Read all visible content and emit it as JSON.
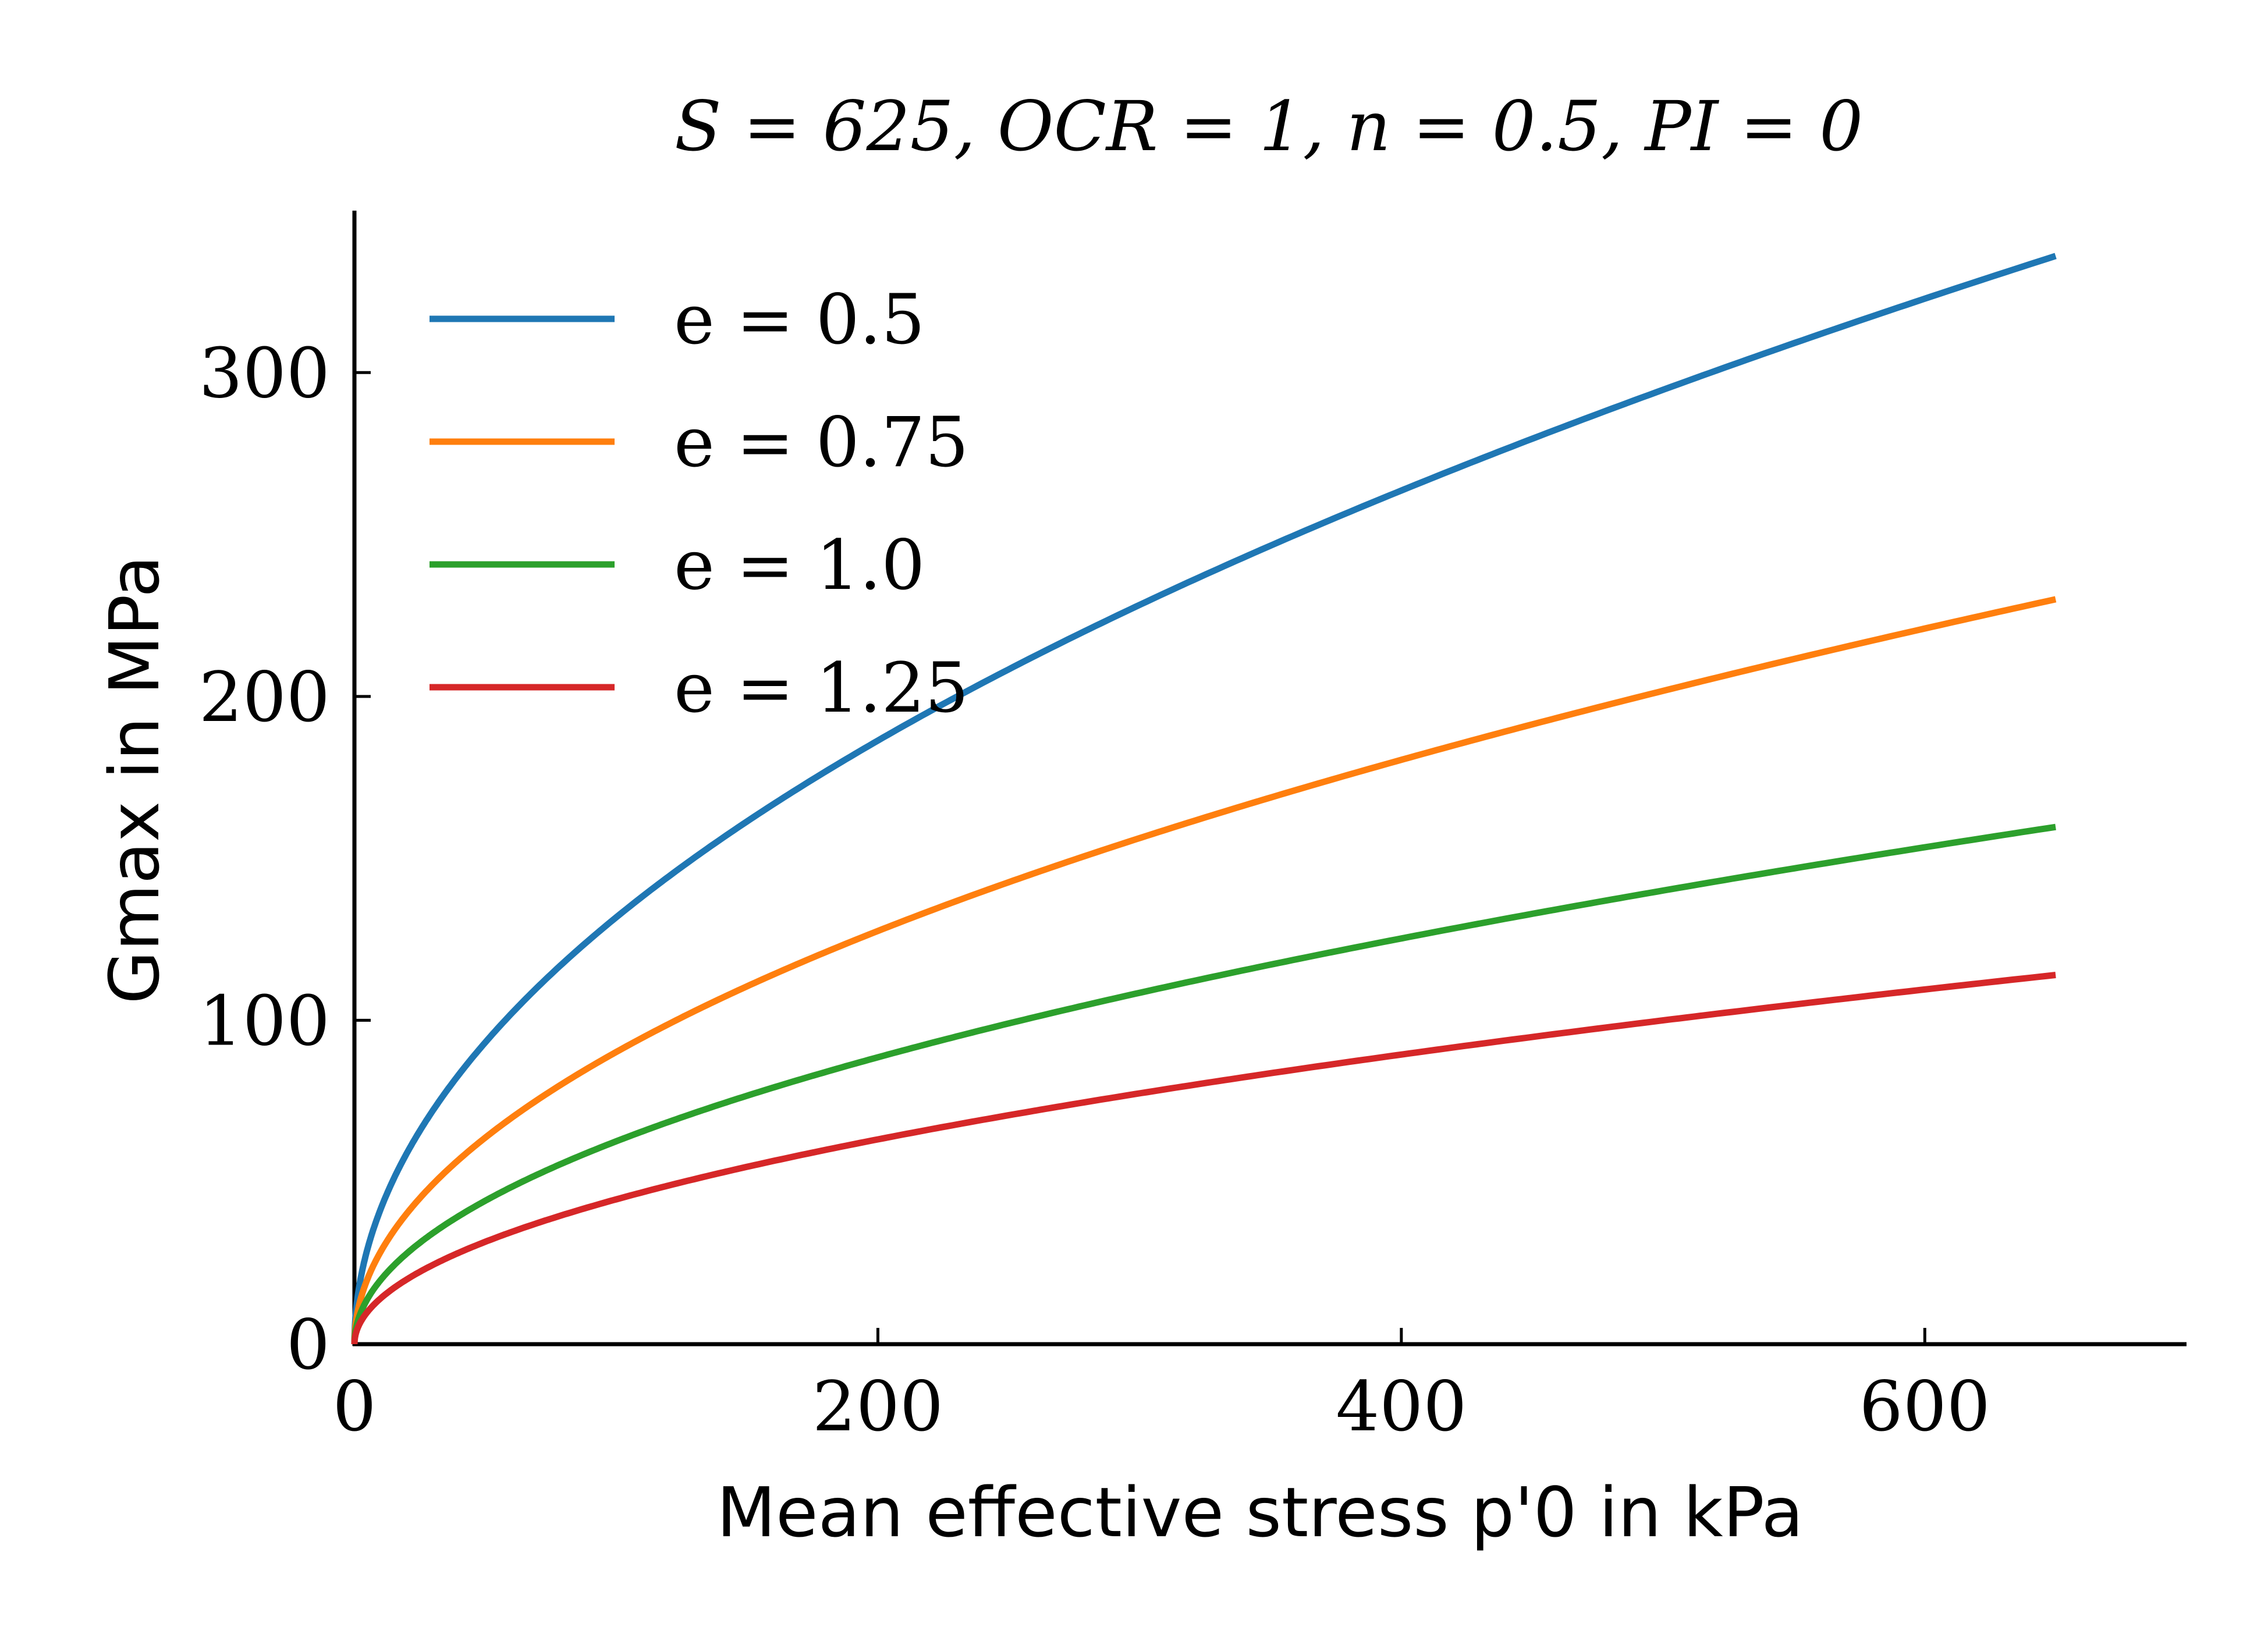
{
  "chart_data": {
    "type": "line",
    "title": "S = 625, OCR = 1, n = 0.5, PI = 0",
    "xlabel": "Mean effective stress p'0 in kPa",
    "ylabel": "Gmax in MPa",
    "xlim": [
      0,
      700
    ],
    "ylim": [
      0,
      350
    ],
    "xticks": [
      0,
      200,
      400,
      600
    ],
    "yticks": [
      0,
      100,
      200,
      300
    ],
    "grid": false,
    "legend_position": "top-left",
    "series": [
      {
        "name": "e = 0.5",
        "color": "#1f77b4",
        "x": [
          0,
          10,
          25,
          50,
          100,
          150,
          200,
          250,
          300,
          350,
          400,
          450,
          500,
          550,
          600,
          650
        ],
        "y": [
          0,
          41.7,
          65.9,
          93.2,
          131.8,
          161.4,
          186.4,
          208.4,
          228.3,
          246.6,
          263.6,
          279.6,
          294.7,
          309.1,
          322.8,
          336.0
        ]
      },
      {
        "name": "e = 0.75",
        "color": "#ff7f0e",
        "x": [
          0,
          10,
          25,
          50,
          100,
          150,
          200,
          250,
          300,
          350,
          400,
          450,
          500,
          550,
          600,
          650
        ],
        "y": [
          0,
          28.5,
          45.1,
          63.8,
          90.2,
          110.5,
          127.6,
          142.6,
          156.3,
          168.8,
          180.4,
          191.4,
          201.7,
          211.6,
          221.0,
          230.0
        ]
      },
      {
        "name": "e = 1.0",
        "color": "#2ca02c",
        "x": [
          0,
          10,
          25,
          50,
          100,
          150,
          200,
          250,
          300,
          350,
          400,
          450,
          500,
          550,
          600,
          650
        ],
        "y": [
          0,
          19.8,
          31.3,
          44.3,
          62.6,
          76.7,
          88.6,
          99.0,
          108.5,
          117.2,
          125.3,
          132.9,
          140.1,
          146.9,
          153.4,
          159.7
        ]
      },
      {
        "name": "e = 1.25",
        "color": "#d62728",
        "x": [
          0,
          10,
          25,
          50,
          100,
          150,
          200,
          250,
          300,
          350,
          400,
          450,
          500,
          550,
          600,
          650
        ],
        "y": [
          0,
          14.2,
          22.4,
          31.6,
          44.7,
          54.8,
          63.3,
          70.7,
          77.5,
          83.7,
          89.5,
          94.9,
          100.0,
          104.9,
          109.6,
          114.0
        ]
      }
    ]
  }
}
